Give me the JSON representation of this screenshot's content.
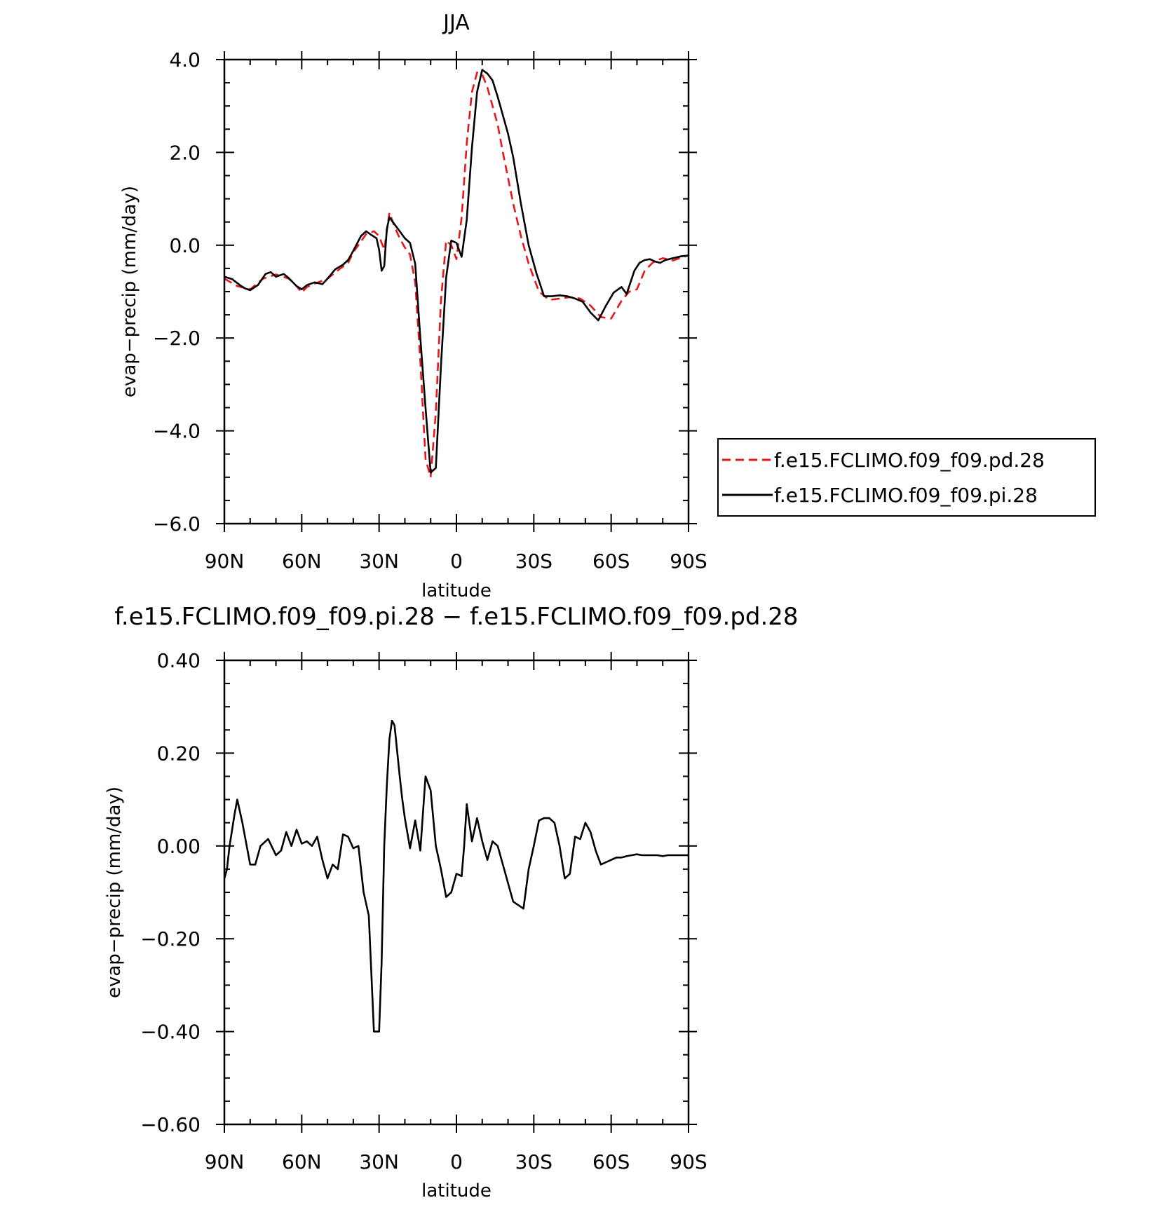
{
  "chart_data": [
    {
      "type": "line",
      "title": "JJA",
      "xlabel": "latitude",
      "ylabel": "evap−precip (mm/day)",
      "xlim": [
        90,
        -90
      ],
      "ylim": [
        -6.0,
        4.0
      ],
      "xticks": [
        90,
        60,
        30,
        0,
        -30,
        -60,
        -90
      ],
      "xtick_labels": [
        "90N",
        "60N",
        "30N",
        "0",
        "30S",
        "60S",
        "90S"
      ],
      "yticks": [
        4.0,
        2.0,
        0.0,
        -2.0,
        -4.0,
        -6.0
      ],
      "ytick_labels": [
        "4.0",
        "2.0",
        "0.0",
        "−2.0",
        "−4.0",
        "−6.0"
      ],
      "legend_position": "right",
      "series": [
        {
          "name": "f.e15.FCLIMO.f09_f09.pd.28",
          "color": "#e8161b",
          "dash": "dashed",
          "x": [
            90,
            85,
            80,
            75,
            70,
            65,
            62,
            60,
            58,
            55,
            50,
            45,
            42,
            40,
            35,
            32,
            30,
            28,
            26,
            24,
            22,
            20,
            18,
            16,
            14,
            12,
            10,
            8,
            6,
            4,
            2,
            0,
            -2,
            -4,
            -6,
            -8,
            -10,
            -12,
            -14,
            -16,
            -18,
            -20,
            -22,
            -25,
            -28,
            -32,
            -36,
            -40,
            -44,
            -48,
            -52,
            -56,
            -60,
            -64,
            -67,
            -70,
            -73,
            -76,
            -78,
            -80,
            -84,
            -88,
            -90
          ],
          "y": [
            -0.72,
            -0.88,
            -0.95,
            -0.72,
            -0.63,
            -0.72,
            -0.88,
            -1.02,
            -0.9,
            -0.83,
            -0.72,
            -0.5,
            -0.38,
            -0.15,
            0.24,
            0.3,
            0.2,
            -0.1,
            0.7,
            0.4,
            0.15,
            -0.05,
            -0.2,
            -0.8,
            -2.5,
            -4.6,
            -5.0,
            -3.6,
            -1.2,
            0.1,
            0.0,
            -0.3,
            0.6,
            2.2,
            3.3,
            3.72,
            3.68,
            3.4,
            3.0,
            2.6,
            2.0,
            1.45,
            0.9,
            0.2,
            -0.4,
            -1.0,
            -1.18,
            -1.15,
            -1.12,
            -1.15,
            -1.3,
            -1.55,
            -1.58,
            -1.2,
            -1.0,
            -0.95,
            -0.55,
            -0.38,
            -0.32,
            -0.28,
            -0.33,
            -0.25,
            -0.22
          ]
        },
        {
          "name": "f.e15.FCLIMO.f09_f09.pi.28",
          "color": "#000000",
          "dash": "solid",
          "x": [
            90,
            87,
            84,
            82,
            80,
            77,
            74,
            72,
            70,
            67,
            65,
            62,
            60,
            58,
            55,
            52,
            50,
            47,
            44,
            42,
            40,
            37,
            35,
            33,
            31,
            30,
            29,
            28,
            27,
            26,
            24,
            22,
            20,
            18,
            16,
            14,
            12,
            10,
            8,
            6,
            4,
            2,
            0,
            -2,
            -4,
            -6,
            -8,
            -10,
            -12,
            -14,
            -16,
            -18,
            -20,
            -22,
            -25,
            -28,
            -31,
            -34,
            -37,
            -40,
            -43,
            -46,
            -49,
            -52,
            -55,
            -58,
            -61,
            -64,
            -66,
            -69,
            -71,
            -73,
            -75,
            -77,
            -79,
            -81,
            -84,
            -87,
            -90
          ],
          "y": [
            -0.68,
            -0.73,
            -0.86,
            -0.93,
            -0.97,
            -0.86,
            -0.62,
            -0.58,
            -0.68,
            -0.62,
            -0.71,
            -0.88,
            -0.95,
            -0.86,
            -0.8,
            -0.84,
            -0.72,
            -0.52,
            -0.42,
            -0.32,
            -0.12,
            0.2,
            0.3,
            0.22,
            0.15,
            -0.1,
            -0.55,
            -0.45,
            0.35,
            0.6,
            0.45,
            0.3,
            0.15,
            0.05,
            -0.4,
            -2.0,
            -3.5,
            -4.9,
            -4.8,
            -2.6,
            -0.7,
            0.1,
            0.05,
            -0.25,
            0.55,
            2.1,
            3.3,
            3.78,
            3.7,
            3.55,
            3.2,
            2.8,
            2.4,
            1.9,
            0.9,
            0.0,
            -0.6,
            -1.1,
            -1.1,
            -1.08,
            -1.1,
            -1.15,
            -1.22,
            -1.45,
            -1.62,
            -1.3,
            -1.02,
            -0.9,
            -1.05,
            -0.55,
            -0.38,
            -0.32,
            -0.3,
            -0.35,
            -0.38,
            -0.32,
            -0.28,
            -0.24,
            -0.22
          ]
        }
      ]
    },
    {
      "type": "line",
      "title": "f.e15.FCLIMO.f09_f09.pi.28 − f.e15.FCLIMO.f09_f09.pd.28",
      "xlabel": "latitude",
      "ylabel": "evap−precip (mm/day)",
      "xlim": [
        90,
        -90
      ],
      "ylim": [
        -0.6,
        0.4
      ],
      "xticks": [
        90,
        60,
        30,
        0,
        -30,
        -60,
        -90
      ],
      "xtick_labels": [
        "90N",
        "60N",
        "30N",
        "0",
        "30S",
        "60S",
        "90S"
      ],
      "yticks": [
        0.4,
        0.2,
        0.0,
        -0.2,
        -0.4,
        -0.6
      ],
      "ytick_labels": [
        "0.40",
        "0.20",
        "0.00",
        "−0.20",
        "−0.40",
        "−0.60"
      ],
      "series": [
        {
          "color": "#000000",
          "dash": "solid",
          "x": [
            90,
            89,
            88,
            86,
            85,
            83,
            80,
            78,
            76,
            73,
            70,
            68,
            66,
            64,
            62,
            60,
            58,
            56,
            54,
            52,
            50,
            48,
            46,
            44,
            42,
            40,
            38,
            36,
            34,
            32,
            30,
            29,
            28,
            27,
            26,
            25,
            24,
            22,
            21,
            20,
            18,
            16,
            14,
            12,
            10,
            8,
            6,
            4,
            2,
            0,
            -2,
            -3,
            -4,
            -6,
            -8,
            -10,
            -12,
            -14,
            -16,
            -18,
            -22,
            -26,
            -28,
            -30,
            -32,
            -34,
            -36,
            -38,
            -40,
            -42,
            -44,
            -46,
            -48,
            -50,
            -52,
            -54,
            -56,
            -58,
            -60,
            -62,
            -64,
            -66,
            -68,
            -70,
            -72,
            -74,
            -76,
            -78,
            -80,
            -82,
            -84,
            -86,
            -88,
            -90
          ],
          "y": [
            -0.07,
            -0.05,
            0.0,
            0.07,
            0.1,
            0.05,
            -0.04,
            -0.04,
            0.0,
            0.015,
            -0.02,
            -0.01,
            0.03,
            0.0,
            0.035,
            0.005,
            0.01,
            0.0,
            0.02,
            -0.03,
            -0.07,
            -0.04,
            -0.05,
            0.025,
            0.02,
            -0.005,
            0.0,
            -0.1,
            -0.15,
            -0.4,
            -0.4,
            -0.25,
            0.0,
            0.13,
            0.23,
            0.27,
            0.26,
            0.15,
            0.1,
            0.06,
            -0.005,
            0.055,
            -0.01,
            0.15,
            0.12,
            0.0,
            -0.05,
            -0.11,
            -0.1,
            -0.06,
            -0.065,
            0.0,
            0.09,
            0.01,
            0.06,
            0.01,
            -0.03,
            0.01,
            0.0,
            -0.04,
            -0.12,
            -0.135,
            -0.05,
            0.0,
            0.055,
            0.06,
            0.06,
            0.05,
            0.0,
            -0.07,
            -0.06,
            0.02,
            0.015,
            0.05,
            0.03,
            -0.01,
            -0.04,
            -0.035,
            -0.03,
            -0.025,
            -0.025,
            -0.022,
            -0.02,
            -0.018,
            -0.02,
            -0.02,
            -0.02,
            -0.02,
            -0.022,
            -0.02,
            -0.02,
            -0.02,
            -0.02,
            -0.02
          ]
        }
      ]
    }
  ]
}
